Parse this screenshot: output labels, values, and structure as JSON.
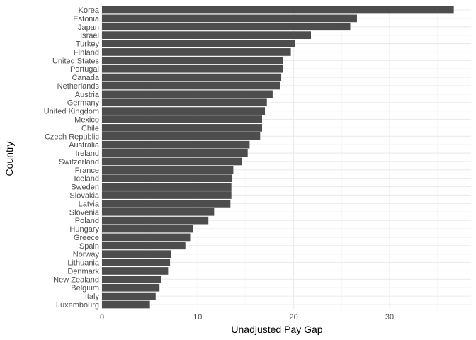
{
  "chart_data": {
    "type": "bar",
    "orientation": "horizontal",
    "xlabel": "Unadjusted Pay Gap",
    "ylabel": "Country",
    "xlim": [
      0,
      38.5
    ],
    "xticks": [
      0,
      10,
      20,
      30
    ],
    "grid": true,
    "bar_color": "#4d4d4d",
    "grid_major_color": "#ebebeb",
    "grid_minor_color": "#f2f2f2",
    "categories": [
      "Korea",
      "Estonia",
      "Japan",
      "Israel",
      "Turkey",
      "Finland",
      "United States",
      "Portugal",
      "Canada",
      "Netherlands",
      "Austria",
      "Germany",
      "United Kingdom",
      "Mexico",
      "Chile",
      "Czech Republic",
      "Australia",
      "Ireland",
      "Switzerland",
      "France",
      "Iceland",
      "Sweden",
      "Slovakia",
      "Latvia",
      "Slovenia",
      "Poland",
      "Hungary",
      "Greece",
      "Spain",
      "Norway",
      "Lithuania",
      "Denmark",
      "New Zealand",
      "Belgium",
      "Italy",
      "Luxembourg"
    ],
    "values": [
      36.7,
      26.6,
      25.9,
      21.8,
      20.1,
      19.7,
      18.9,
      18.9,
      18.7,
      18.6,
      17.8,
      17.2,
      17.0,
      16.7,
      16.7,
      16.5,
      15.4,
      15.2,
      14.6,
      13.7,
      13.6,
      13.5,
      13.5,
      13.4,
      11.7,
      11.1,
      9.5,
      9.2,
      8.7,
      7.2,
      7.1,
      6.9,
      6.2,
      6.0,
      5.6,
      5.0
    ]
  }
}
